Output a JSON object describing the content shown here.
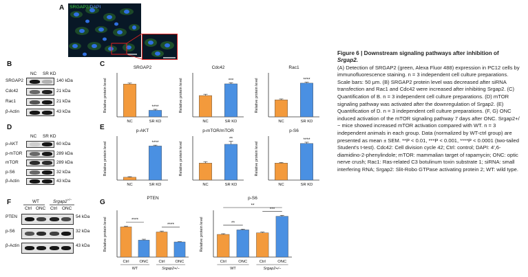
{
  "caption": {
    "title_line1": "Figure 6  |  Downstream signaling pathways after inhibition of",
    "title_line2": "Srgap2.",
    "body": "(A) Detection of SRGAP2 (green, Alexa Fluor 488) expression in PC12 cells by immunofluorescence staining. n = 3 independent cell culture preparations. Scale bars: 50 μm. (B) SRGAP2 protein level was decreased after siRNA transfection and Rac1 and Cdc42 were increased after inhibiting Srgap2. (C) Quantification of B. n = 3 independent cell culture preparations. (D) mTOR signaling pathway was activated after the downregulation of Srgap2. (E) Quantification of D. n = 3 independent cell culture preparations. (F, G) ONC induced activation of the mTOR signaling pathway 7 days after ONC. Srgap2+/− mice showed increased mTOR activation compared with WT. n = 3 independent animals in each group. Data (normalized by WT-ctrl group) are presented as mean ± SEM. **P < 0.01, ***P < 0.001, ****P < 0.0001 (two-tailed Student's t-test). Cdc42: Cell division cycle 42; Ctrl: control; DAPI: 4′,6-diamidino-2-phenylindole; mTOR: mammalian target of rapamycin; ONC: optic nerve crush; Rac1: Ras-related C3 botulinum toxin substrate 1; siRNA: small interfering RNA; Srgap2: Slit-Robo GTPase activating protein 2; WT: wild type."
  },
  "panel_letters": {
    "a": "A",
    "b": "B",
    "c": "C",
    "d": "D",
    "e": "E",
    "f": "F",
    "g": "G"
  },
  "panel_a": {
    "stain_label_green": "SRGAP2/",
    "stain_label_blue": "DAPI"
  },
  "panel_b": {
    "lanes": [
      "NC",
      "SR KD"
    ],
    "rows": [
      {
        "label": "SRGAP2",
        "kda": "140 kDa"
      },
      {
        "label": "Cdc42",
        "kda": "21 kDa"
      },
      {
        "label": "Rac1",
        "kda": "21 kDa"
      },
      {
        "label": "β-Actin",
        "kda": "43 kDa"
      }
    ]
  },
  "panel_d": {
    "lanes": [
      "NC",
      "SR KD"
    ],
    "rows": [
      {
        "label": "p-AKT",
        "kda": "60 kDa"
      },
      {
        "label": "p-mTOR",
        "kda": "289 kDa"
      },
      {
        "label": "mTOR",
        "kda": "289 kDa"
      },
      {
        "label": "p-S6",
        "kda": "32 kDa"
      },
      {
        "label": "β-Actin",
        "kda": "43 kDa"
      }
    ]
  },
  "panel_f": {
    "group_wt": "WT",
    "group_het": "Srgap2",
    "group_het_sup": "+/−",
    "lanes": [
      "Ctrl",
      "ONC",
      "Ctrl",
      "ONC"
    ],
    "rows": [
      {
        "label": "PTEN",
        "kda": "54 kDa"
      },
      {
        "label": "p-S6",
        "kda": "32 kDa"
      },
      {
        "label": "β-Actin",
        "kda": "43 kDa"
      }
    ]
  },
  "colors": {
    "orange": "#f39a3c",
    "blue": "#4a90e2",
    "axis": "#333333"
  },
  "chart_data": [
    {
      "id": "c1",
      "type": "bar",
      "title": "SRGAP2",
      "ylabel": "Relative protein level",
      "categories": [
        "NC",
        "SR KD"
      ],
      "values": [
        1.0,
        0.2
      ],
      "errors": [
        0.03,
        0.03
      ],
      "ylim": [
        0,
        1.3
      ],
      "sig": [
        {
          "from": 1,
          "to": 1,
          "text": "****"
        }
      ]
    },
    {
      "id": "c2",
      "type": "bar",
      "title": "Cdc42",
      "ylabel": "Relative protein level",
      "categories": [
        "NC",
        "SR KD"
      ],
      "values": [
        1.0,
        1.55
      ],
      "errors": [
        0.06,
        0.05
      ],
      "ylim": [
        0,
        2.0
      ],
      "sig": [
        {
          "from": 1,
          "to": 1,
          "text": "***"
        }
      ]
    },
    {
      "id": "c3",
      "type": "bar",
      "title": "Rac1",
      "ylabel": "Relative protein level",
      "categories": [
        "NC",
        "SR KD"
      ],
      "values": [
        1.0,
        1.98
      ],
      "errors": [
        0.05,
        0.05
      ],
      "ylim": [
        0,
        2.5
      ],
      "sig": [
        {
          "from": 1,
          "to": 1,
          "text": "****"
        }
      ]
    },
    {
      "id": "e1",
      "type": "bar",
      "title": "p-AKT",
      "ylabel": "Relative protein level",
      "categories": [
        "NC",
        "SR KD"
      ],
      "values": [
        1.0,
        12.0
      ],
      "errors": [
        0.2,
        0.3
      ],
      "ylim": [
        0,
        15
      ],
      "sig": [
        {
          "from": 1,
          "to": 1,
          "text": "****"
        }
      ]
    },
    {
      "id": "e2",
      "type": "bar",
      "title": "p-mTOR/mTOR",
      "ylabel": "Relative protein level",
      "categories": [
        "NC",
        "SR KD"
      ],
      "values": [
        1.0,
        2.1
      ],
      "errors": [
        0.08,
        0.17
      ],
      "ylim": [
        0,
        2.5
      ],
      "sig": [
        {
          "from": 1,
          "to": 1,
          "text": "**"
        }
      ]
    },
    {
      "id": "e3",
      "type": "bar",
      "title": "p-S6",
      "ylabel": "Relative protein level",
      "categories": [
        "NC",
        "SR KD"
      ],
      "values": [
        1.0,
        2.15
      ],
      "errors": [
        0.03,
        0.07
      ],
      "ylim": [
        0,
        2.5
      ],
      "sig": [
        {
          "from": 1,
          "to": 1,
          "text": "****"
        }
      ]
    },
    {
      "id": "g1",
      "type": "bar",
      "title": "PTEN",
      "ylabel": "Relative protein level",
      "categories": [
        "Ctrl",
        "ONC",
        "Ctrl",
        "ONC"
      ],
      "groups": [
        "WT",
        "Srgap2+/−"
      ],
      "values": [
        1.0,
        0.56,
        0.83,
        0.5
      ],
      "errors": [
        0.02,
        0.03,
        0.03,
        0.01
      ],
      "ylim": [
        0,
        1.5
      ],
      "sig": [
        {
          "from": 0,
          "to": 1,
          "text": "****"
        },
        {
          "from": 2,
          "to": 3,
          "text": "****"
        }
      ]
    },
    {
      "id": "g2",
      "type": "bar",
      "title": "p-S6",
      "ylabel": "Relative protein level",
      "categories": [
        "Ctrl",
        "ONC",
        "Ctrl",
        "ONC"
      ],
      "groups": [
        "WT",
        "Srgap2+/−"
      ],
      "values": [
        1.0,
        1.2,
        1.07,
        1.8
      ],
      "errors": [
        0.03,
        0.03,
        0.03,
        0.04
      ],
      "ylim": [
        0,
        2.0
      ],
      "sig": [
        {
          "from": 0,
          "to": 1,
          "text": "**"
        },
        {
          "from": 2,
          "to": 3,
          "text": "***"
        },
        {
          "from": 0,
          "to": 3,
          "text": "**"
        }
      ]
    }
  ]
}
